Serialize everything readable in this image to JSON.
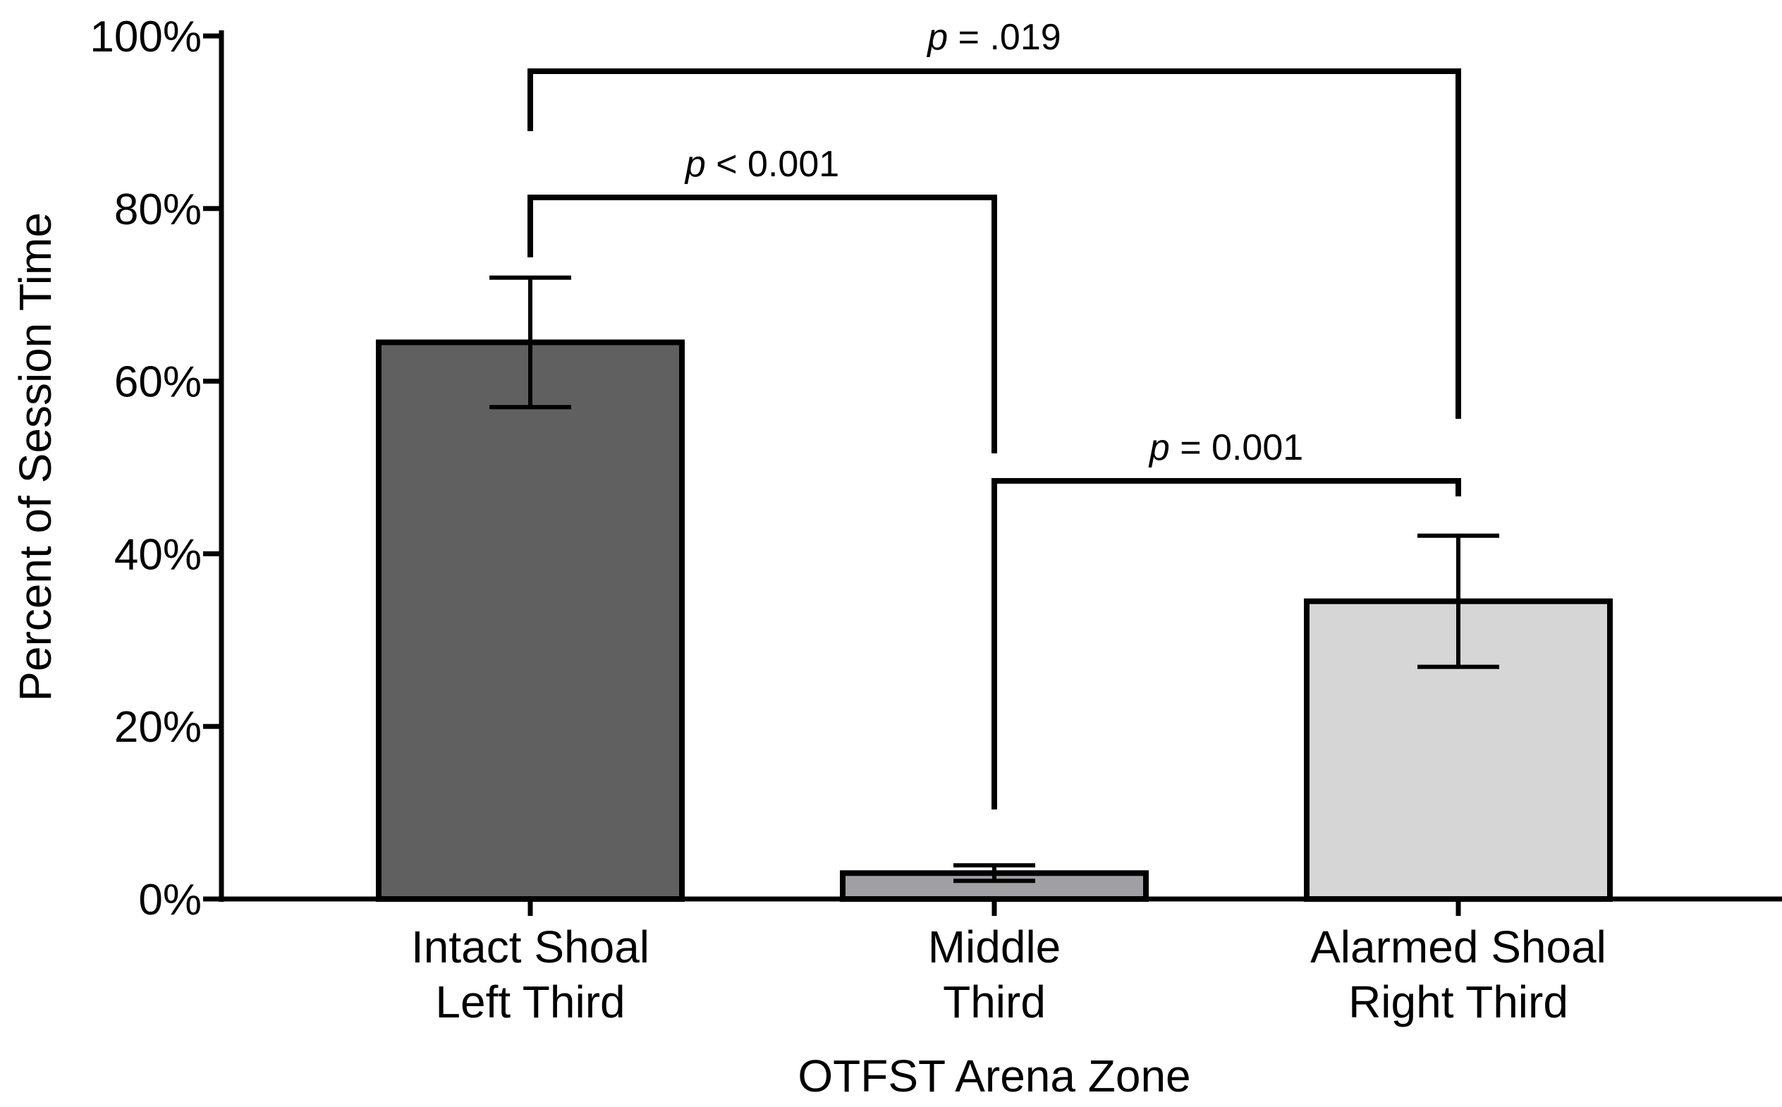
{
  "chart_data": {
    "type": "bar",
    "title": "",
    "xlabel": "OTFST Arena Zone",
    "ylabel": "Percent of Session Time",
    "ylim": [
      0,
      100
    ],
    "yticks": [
      0,
      20,
      40,
      60,
      80,
      100
    ],
    "ytick_labels": [
      "0%",
      "20%",
      "40%",
      "60%",
      "80%",
      "100%"
    ],
    "grid": false,
    "categories": [
      [
        "Intact Shoal",
        "Left Third"
      ],
      [
        "Middle",
        "Third"
      ],
      [
        "Alarmed Shoal",
        "Right Third"
      ]
    ],
    "values": [
      64.5,
      3.0,
      34.5
    ],
    "error": [
      7.5,
      0.9,
      7.6
    ],
    "colors": [
      "#606060",
      "#a0a0a4",
      "#d6d6d6"
    ],
    "significance": [
      {
        "from": 0,
        "to": 1,
        "p_symbol": "p",
        "text": " < 0.001"
      },
      {
        "from": 1,
        "to": 2,
        "p_symbol": "p",
        "text": " = 0.001"
      },
      {
        "from": 0,
        "to": 2,
        "p_symbol": "p",
        "text": " = .019"
      }
    ]
  }
}
